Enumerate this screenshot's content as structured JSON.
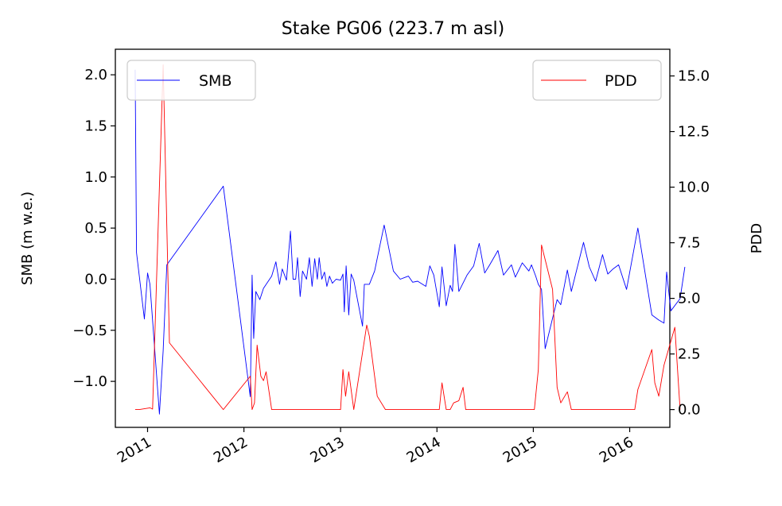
{
  "chart_data": {
    "type": "line",
    "title": "Stake PG06 (223.7 m asl)",
    "ylabel_left": "SMB (m w.e.)",
    "ylabel_right": "PDD",
    "x_ticks": [
      "2011",
      "2012",
      "2013",
      "2014",
      "2015",
      "2016"
    ],
    "y_left_ticks": [
      "−1.0",
      "−0.5",
      "0.0",
      "0.5",
      "1.0",
      "1.5",
      "2.0"
    ],
    "y_right_ticks": [
      "0.0",
      "2.5",
      "5.0",
      "7.5",
      "10.0",
      "12.5",
      "15.0"
    ],
    "ylim_left": [
      -1.45,
      2.25
    ],
    "ylim_right": [
      -0.8,
      16.2
    ],
    "xlim": [
      "2010-09-01",
      "2016-06-01"
    ],
    "grid": false,
    "legend_left": {
      "placement": "top-left",
      "label": "SMB"
    },
    "legend_right": {
      "placement": "top-right",
      "label": "PDD"
    },
    "colors": {
      "smb": "#0000ff",
      "pdd": "#ff0000"
    },
    "series": [
      {
        "name": "SMB",
        "axis": "left",
        "points": [
          [
            "2010-11-15",
            2.05
          ],
          [
            "2010-11-20",
            0.26
          ],
          [
            "2010-12-20",
            -0.39
          ],
          [
            "2011-01-01",
            0.06
          ],
          [
            "2011-01-10",
            -0.05
          ],
          [
            "2011-02-15",
            -1.32
          ],
          [
            "2011-03-01",
            -0.7
          ],
          [
            "2011-03-15",
            0.14
          ],
          [
            "2011-10-15",
            0.91
          ],
          [
            "2012-01-25",
            -1.15
          ],
          [
            "2012-02-01",
            0.04
          ],
          [
            "2012-02-07",
            -0.58
          ],
          [
            "2012-02-15",
            -0.12
          ],
          [
            "2012-03-01",
            -0.2
          ],
          [
            "2012-03-15",
            -0.09
          ],
          [
            "2012-04-15",
            0.03
          ],
          [
            "2012-05-01",
            0.17
          ],
          [
            "2012-05-15",
            -0.05
          ],
          [
            "2012-05-25",
            0.1
          ],
          [
            "2012-06-10",
            -0.01
          ],
          [
            "2012-06-25",
            0.47
          ],
          [
            "2012-07-05",
            0.0
          ],
          [
            "2012-07-15",
            0.0
          ],
          [
            "2012-07-22",
            0.21
          ],
          [
            "2012-08-01",
            -0.17
          ],
          [
            "2012-08-10",
            0.08
          ],
          [
            "2012-08-25",
            0.0
          ],
          [
            "2012-09-05",
            0.21
          ],
          [
            "2012-09-15",
            -0.07
          ],
          [
            "2012-09-25",
            0.2
          ],
          [
            "2012-10-05",
            0.0
          ],
          [
            "2012-10-12",
            0.21
          ],
          [
            "2012-10-22",
            0.0
          ],
          [
            "2012-11-01",
            0.07
          ],
          [
            "2012-11-10",
            -0.07
          ],
          [
            "2012-11-20",
            0.03
          ],
          [
            "2012-12-01",
            -0.04
          ],
          [
            "2012-12-15",
            0.0
          ],
          [
            "2013-01-01",
            -0.01
          ],
          [
            "2013-01-10",
            0.05
          ],
          [
            "2013-01-15",
            -0.32
          ],
          [
            "2013-01-22",
            0.13
          ],
          [
            "2013-02-01",
            -0.35
          ],
          [
            "2013-02-10",
            0.05
          ],
          [
            "2013-02-20",
            -0.01
          ],
          [
            "2013-03-25",
            -0.46
          ],
          [
            "2013-04-01",
            -0.05
          ],
          [
            "2013-04-20",
            -0.05
          ],
          [
            "2013-05-10",
            0.08
          ],
          [
            "2013-06-15",
            0.53
          ],
          [
            "2013-07-20",
            0.08
          ],
          [
            "2013-08-15",
            0.0
          ],
          [
            "2013-09-15",
            0.03
          ],
          [
            "2013-10-01",
            -0.03
          ],
          [
            "2013-10-20",
            -0.02
          ],
          [
            "2013-11-20",
            -0.07
          ],
          [
            "2013-12-05",
            0.13
          ],
          [
            "2013-12-20",
            0.04
          ],
          [
            "2014-01-10",
            -0.27
          ],
          [
            "2014-01-20",
            0.12
          ],
          [
            "2014-02-05",
            -0.26
          ],
          [
            "2014-02-20",
            -0.06
          ],
          [
            "2014-03-01",
            -0.12
          ],
          [
            "2014-03-10",
            0.34
          ],
          [
            "2014-03-25",
            -0.12
          ],
          [
            "2014-04-25",
            0.04
          ],
          [
            "2014-05-20",
            0.13
          ],
          [
            "2014-06-10",
            0.35
          ],
          [
            "2014-07-01",
            0.06
          ],
          [
            "2014-07-20",
            0.14
          ],
          [
            "2014-08-20",
            0.28
          ],
          [
            "2014-09-10",
            0.04
          ],
          [
            "2014-10-10",
            0.14
          ],
          [
            "2014-10-25",
            0.02
          ],
          [
            "2014-11-20",
            0.16
          ],
          [
            "2014-12-15",
            0.08
          ],
          [
            "2014-12-25",
            0.14
          ],
          [
            "2015-01-10",
            0.03
          ],
          [
            "2015-01-20",
            -0.05
          ],
          [
            "2015-02-01",
            -0.1
          ],
          [
            "2015-02-15",
            -0.68
          ],
          [
            "2015-04-01",
            -0.2
          ],
          [
            "2015-04-15",
            -0.25
          ],
          [
            "2015-05-10",
            0.09
          ],
          [
            "2015-05-25",
            -0.12
          ],
          [
            "2015-07-10",
            0.36
          ],
          [
            "2015-08-01",
            0.12
          ],
          [
            "2015-08-25",
            -0.02
          ],
          [
            "2015-09-20",
            0.24
          ],
          [
            "2015-10-10",
            0.05
          ],
          [
            "2015-10-30",
            0.1
          ],
          [
            "2015-11-20",
            0.14
          ],
          [
            "2015-12-20",
            -0.1
          ],
          [
            "2016-02-01",
            0.5
          ],
          [
            "2016-03-25",
            -0.35
          ],
          [
            "2016-04-20",
            -0.4
          ],
          [
            "2016-05-10",
            -0.43
          ],
          [
            "2016-05-20",
            0.07
          ],
          [
            "2016-06-05",
            -0.31
          ],
          [
            "2016-07-10",
            -0.19
          ],
          [
            "2016-07-28",
            0.12
          ]
        ]
      },
      {
        "name": "PDD",
        "axis": "right",
        "points": [
          [
            "2010-11-15",
            0.0
          ],
          [
            "2010-12-01",
            0.0
          ],
          [
            "2011-01-10",
            0.08
          ],
          [
            "2011-01-20",
            0.02
          ],
          [
            "2011-03-01",
            15.5
          ],
          [
            "2011-03-25",
            3.0
          ],
          [
            "2011-10-15",
            0.0
          ],
          [
            "2012-01-25",
            1.5
          ],
          [
            "2012-02-01",
            0.0
          ],
          [
            "2012-02-10",
            0.3
          ],
          [
            "2012-02-20",
            2.9
          ],
          [
            "2012-03-05",
            1.5
          ],
          [
            "2012-03-15",
            1.3
          ],
          [
            "2012-03-25",
            1.7
          ],
          [
            "2012-04-15",
            0.0
          ],
          [
            "2012-07-01",
            0.0
          ],
          [
            "2013-01-01",
            0.0
          ],
          [
            "2013-01-10",
            1.8
          ],
          [
            "2013-01-20",
            0.6
          ],
          [
            "2013-02-01",
            1.7
          ],
          [
            "2013-02-20",
            0.0
          ],
          [
            "2013-04-10",
            3.8
          ],
          [
            "2013-04-20",
            3.3
          ],
          [
            "2013-05-20",
            0.6
          ],
          [
            "2013-06-20",
            0.0
          ],
          [
            "2014-01-10",
            0.0
          ],
          [
            "2014-01-20",
            1.2
          ],
          [
            "2014-02-05",
            0.0
          ],
          [
            "2014-02-20",
            0.0
          ],
          [
            "2014-03-05",
            0.3
          ],
          [
            "2014-03-25",
            0.4
          ],
          [
            "2014-04-10",
            1.0
          ],
          [
            "2014-04-20",
            0.0
          ],
          [
            "2015-01-05",
            0.0
          ],
          [
            "2015-01-20",
            1.8
          ],
          [
            "2015-02-01",
            7.4
          ],
          [
            "2015-03-15",
            5.4
          ],
          [
            "2015-04-01",
            1.0
          ],
          [
            "2015-04-15",
            0.3
          ],
          [
            "2015-05-10",
            0.8
          ],
          [
            "2015-05-25",
            0.0
          ],
          [
            "2015-06-15",
            0.0
          ],
          [
            "2016-01-20",
            0.0
          ],
          [
            "2016-02-01",
            0.9
          ],
          [
            "2016-03-25",
            2.7
          ],
          [
            "2016-04-05",
            1.2
          ],
          [
            "2016-04-20",
            0.6
          ],
          [
            "2016-05-10",
            2.0
          ],
          [
            "2016-06-20",
            3.7
          ],
          [
            "2016-07-10",
            0.0
          ]
        ]
      }
    ]
  }
}
